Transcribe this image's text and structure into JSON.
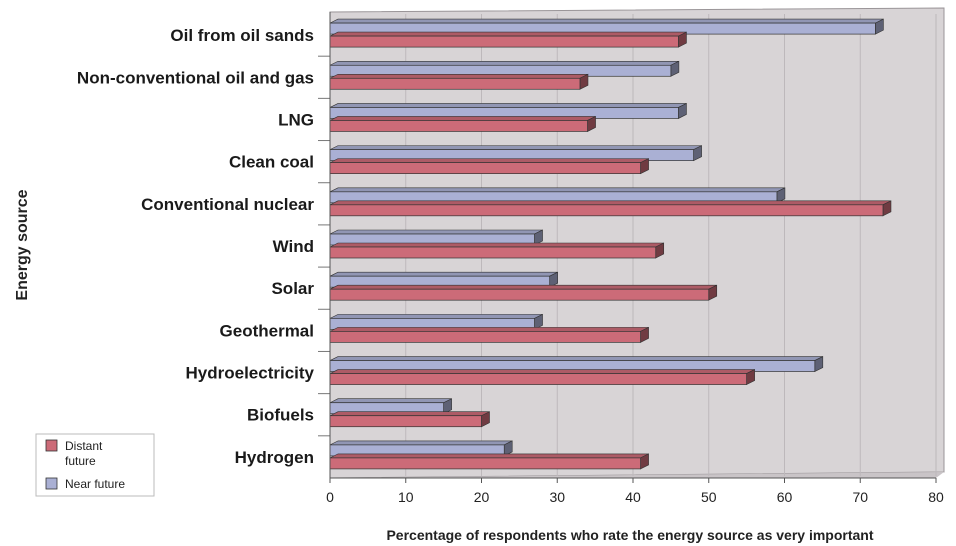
{
  "chart_data": {
    "type": "bar",
    "orientation": "horizontal",
    "title": "",
    "xlabel": "Percentage of respondents who rate the energy source as very important",
    "ylabel": "Energy source",
    "xlim": [
      0,
      80
    ],
    "xticks": [
      0,
      10,
      20,
      30,
      40,
      50,
      60,
      70,
      80
    ],
    "grid": true,
    "legend_position": "bottom-left",
    "categories": [
      "Oil from oil sands",
      "Non-conventional oil and gas",
      "LNG",
      "Clean coal",
      "Conventional nuclear",
      "Wind",
      "Solar",
      "Geothermal",
      "Hydroelectricity",
      "Biofuels",
      "Hydrogen"
    ],
    "series": [
      {
        "name": "Near future",
        "color": "#aab0d4",
        "values": [
          72,
          45,
          46,
          48,
          59,
          27,
          29,
          27,
          64,
          15,
          23
        ]
      },
      {
        "name": "Distant future",
        "color": "#cc6b78",
        "values": [
          46,
          33,
          34,
          41,
          73,
          43,
          50,
          41,
          55,
          20,
          41
        ]
      }
    ],
    "legend": {
      "entries": [
        {
          "series": "Distant future",
          "lines": [
            "Distant",
            "future"
          ]
        },
        {
          "series": "Near future",
          "lines": [
            "Near future"
          ]
        }
      ]
    },
    "colors": {
      "plot_background": "#d8d4d6",
      "gridline": "#bdb8bb"
    }
  }
}
